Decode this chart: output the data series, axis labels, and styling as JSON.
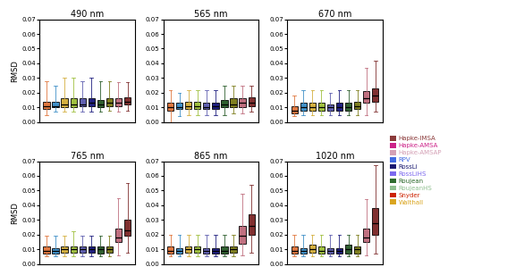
{
  "bands": [
    "490 nm",
    "565 nm",
    "670 nm",
    "765 nm",
    "865 nm",
    "1020 nm"
  ],
  "models": [
    "Hapke-IMSA",
    "Hapke-AMSA",
    "Hapke-AMSAP",
    "RPV",
    "RossLi",
    "RossLiHS",
    "Roujean",
    "RoujeanHS",
    "Snyder",
    "Walthall"
  ],
  "colors": [
    "#d2691e",
    "#4682b4",
    "#daa520",
    "#9acd32",
    "#6a5acd",
    "#191970",
    "#2e8b57",
    "#808000",
    "#c08080",
    "#8b2020"
  ],
  "legend_text_colors": [
    "#8b3a3a",
    "#cc3399",
    "#d4a0b0",
    "#4682b4",
    "#191970",
    "#7b68ee",
    "#2e6b2e",
    "#90c090",
    "#cc2200",
    "#daa520"
  ],
  "ylabel": "RMSD",
  "ylim": [
    0.0,
    0.07
  ],
  "yticks": [
    0.0,
    0.01,
    0.02,
    0.03,
    0.04,
    0.05,
    0.06,
    0.07
  ],
  "boxplot_data": {
    "490 nm": {
      "Hapke-IMSA": {
        "whislo": 0.005,
        "q1": 0.009,
        "med": 0.011,
        "q3": 0.014,
        "whishi": 0.028
      },
      "Hapke-AMSA": {
        "whislo": 0.007,
        "q1": 0.01,
        "med": 0.011,
        "q3": 0.014,
        "whishi": 0.025
      },
      "Hapke-AMSAP": {
        "whislo": 0.007,
        "q1": 0.01,
        "med": 0.012,
        "q3": 0.016,
        "whishi": 0.03
      },
      "RPV": {
        "whislo": 0.007,
        "q1": 0.01,
        "med": 0.012,
        "q3": 0.016,
        "whishi": 0.03
      },
      "RossLi": {
        "whislo": 0.007,
        "q1": 0.011,
        "med": 0.012,
        "q3": 0.016,
        "whishi": 0.028
      },
      "RossLiHS": {
        "whislo": 0.007,
        "q1": 0.011,
        "med": 0.013,
        "q3": 0.016,
        "whishi": 0.03
      },
      "Roujean": {
        "whislo": 0.007,
        "q1": 0.01,
        "med": 0.012,
        "q3": 0.015,
        "whishi": 0.028
      },
      "RoujeanHS": {
        "whislo": 0.008,
        "q1": 0.011,
        "med": 0.013,
        "q3": 0.016,
        "whishi": 0.028
      },
      "Snyder": {
        "whislo": 0.007,
        "q1": 0.011,
        "med": 0.013,
        "q3": 0.016,
        "whishi": 0.027
      },
      "Walthall": {
        "whislo": 0.008,
        "q1": 0.012,
        "med": 0.014,
        "q3": 0.017,
        "whishi": 0.027
      }
    },
    "565 nm": {
      "Hapke-IMSA": {
        "whislo": 0.0,
        "q1": 0.008,
        "med": 0.01,
        "q3": 0.013,
        "whishi": 0.022
      },
      "Hapke-AMSA": {
        "whislo": 0.004,
        "q1": 0.009,
        "med": 0.01,
        "q3": 0.013,
        "whishi": 0.02
      },
      "Hapke-AMSAP": {
        "whislo": 0.005,
        "q1": 0.009,
        "med": 0.011,
        "q3": 0.014,
        "whishi": 0.022
      },
      "RPV": {
        "whislo": 0.005,
        "q1": 0.009,
        "med": 0.011,
        "q3": 0.014,
        "whishi": 0.022
      },
      "RossLi": {
        "whislo": 0.005,
        "q1": 0.009,
        "med": 0.01,
        "q3": 0.013,
        "whishi": 0.022
      },
      "RossLiHS": {
        "whislo": 0.005,
        "q1": 0.009,
        "med": 0.011,
        "q3": 0.013,
        "whishi": 0.022
      },
      "Roujean": {
        "whislo": 0.005,
        "q1": 0.01,
        "med": 0.012,
        "q3": 0.015,
        "whishi": 0.025
      },
      "RoujeanHS": {
        "whislo": 0.006,
        "q1": 0.01,
        "med": 0.012,
        "q3": 0.016,
        "whishi": 0.025
      },
      "Snyder": {
        "whislo": 0.006,
        "q1": 0.01,
        "med": 0.013,
        "q3": 0.016,
        "whishi": 0.025
      },
      "Walthall": {
        "whislo": 0.007,
        "q1": 0.011,
        "med": 0.013,
        "q3": 0.017,
        "whishi": 0.025
      }
    },
    "670 nm": {
      "Hapke-IMSA": {
        "whislo": 0.004,
        "q1": 0.006,
        "med": 0.008,
        "q3": 0.011,
        "whishi": 0.018
      },
      "Hapke-AMSA": {
        "whislo": 0.005,
        "q1": 0.008,
        "med": 0.01,
        "q3": 0.013,
        "whishi": 0.022
      },
      "Hapke-AMSAP": {
        "whislo": 0.005,
        "q1": 0.008,
        "med": 0.01,
        "q3": 0.013,
        "whishi": 0.022
      },
      "RPV": {
        "whislo": 0.005,
        "q1": 0.008,
        "med": 0.01,
        "q3": 0.013,
        "whishi": 0.022
      },
      "RossLi": {
        "whislo": 0.005,
        "q1": 0.008,
        "med": 0.01,
        "q3": 0.012,
        "whishi": 0.02
      },
      "RossLiHS": {
        "whislo": 0.005,
        "q1": 0.008,
        "med": 0.01,
        "q3": 0.013,
        "whishi": 0.022
      },
      "Roujean": {
        "whislo": 0.005,
        "q1": 0.008,
        "med": 0.01,
        "q3": 0.013,
        "whishi": 0.022
      },
      "RoujeanHS": {
        "whislo": 0.005,
        "q1": 0.009,
        "med": 0.011,
        "q3": 0.014,
        "whishi": 0.022
      },
      "Snyder": {
        "whislo": 0.005,
        "q1": 0.013,
        "med": 0.016,
        "q3": 0.021,
        "whishi": 0.037
      },
      "Walthall": {
        "whislo": 0.007,
        "q1": 0.014,
        "med": 0.018,
        "q3": 0.023,
        "whishi": 0.042
      }
    },
    "765 nm": {
      "Hapke-IMSA": {
        "whislo": 0.005,
        "q1": 0.007,
        "med": 0.009,
        "q3": 0.012,
        "whishi": 0.019
      },
      "Hapke-AMSA": {
        "whislo": 0.005,
        "q1": 0.007,
        "med": 0.009,
        "q3": 0.011,
        "whishi": 0.019
      },
      "Hapke-AMSAP": {
        "whislo": 0.005,
        "q1": 0.008,
        "med": 0.01,
        "q3": 0.012,
        "whishi": 0.019
      },
      "RPV": {
        "whislo": 0.005,
        "q1": 0.008,
        "med": 0.01,
        "q3": 0.012,
        "whishi": 0.022
      },
      "RossLi": {
        "whislo": 0.005,
        "q1": 0.008,
        "med": 0.01,
        "q3": 0.012,
        "whishi": 0.019
      },
      "RossLiHS": {
        "whislo": 0.005,
        "q1": 0.008,
        "med": 0.01,
        "q3": 0.012,
        "whishi": 0.019
      },
      "Roujean": {
        "whislo": 0.005,
        "q1": 0.007,
        "med": 0.01,
        "q3": 0.012,
        "whishi": 0.019
      },
      "RoujeanHS": {
        "whislo": 0.005,
        "q1": 0.008,
        "med": 0.01,
        "q3": 0.012,
        "whishi": 0.019
      },
      "Snyder": {
        "whislo": 0.006,
        "q1": 0.015,
        "med": 0.018,
        "q3": 0.024,
        "whishi": 0.045
      },
      "Walthall": {
        "whislo": 0.008,
        "q1": 0.019,
        "med": 0.023,
        "q3": 0.03,
        "whishi": 0.055
      }
    },
    "865 nm": {
      "Hapke-IMSA": {
        "whislo": 0.005,
        "q1": 0.007,
        "med": 0.009,
        "q3": 0.012,
        "whishi": 0.02
      },
      "Hapke-AMSA": {
        "whislo": 0.005,
        "q1": 0.007,
        "med": 0.009,
        "q3": 0.011,
        "whishi": 0.02
      },
      "Hapke-AMSAP": {
        "whislo": 0.005,
        "q1": 0.008,
        "med": 0.01,
        "q3": 0.012,
        "whishi": 0.02
      },
      "RPV": {
        "whislo": 0.005,
        "q1": 0.008,
        "med": 0.01,
        "q3": 0.012,
        "whishi": 0.02
      },
      "RossLi": {
        "whislo": 0.005,
        "q1": 0.007,
        "med": 0.009,
        "q3": 0.011,
        "whishi": 0.02
      },
      "RossLiHS": {
        "whislo": 0.005,
        "q1": 0.007,
        "med": 0.009,
        "q3": 0.011,
        "whishi": 0.02
      },
      "Roujean": {
        "whislo": 0.005,
        "q1": 0.007,
        "med": 0.009,
        "q3": 0.012,
        "whishi": 0.02
      },
      "RoujeanHS": {
        "whislo": 0.005,
        "q1": 0.008,
        "med": 0.01,
        "q3": 0.012,
        "whishi": 0.02
      },
      "Snyder": {
        "whislo": 0.006,
        "q1": 0.014,
        "med": 0.019,
        "q3": 0.026,
        "whishi": 0.048
      },
      "Walthall": {
        "whislo": 0.008,
        "q1": 0.02,
        "med": 0.026,
        "q3": 0.034,
        "whishi": 0.054
      }
    },
    "1020 nm": {
      "Hapke-IMSA": {
        "whislo": 0.005,
        "q1": 0.007,
        "med": 0.009,
        "q3": 0.012,
        "whishi": 0.02
      },
      "Hapke-AMSA": {
        "whislo": 0.005,
        "q1": 0.007,
        "med": 0.009,
        "q3": 0.011,
        "whishi": 0.02
      },
      "Hapke-AMSAP": {
        "whislo": 0.005,
        "q1": 0.008,
        "med": 0.01,
        "q3": 0.013,
        "whishi": 0.02
      },
      "RPV": {
        "whislo": 0.005,
        "q1": 0.007,
        "med": 0.009,
        "q3": 0.012,
        "whishi": 0.02
      },
      "RossLi": {
        "whislo": 0.005,
        "q1": 0.007,
        "med": 0.009,
        "q3": 0.011,
        "whishi": 0.02
      },
      "RossLiHS": {
        "whislo": 0.005,
        "q1": 0.007,
        "med": 0.009,
        "q3": 0.011,
        "whishi": 0.02
      },
      "Roujean": {
        "whislo": 0.005,
        "q1": 0.007,
        "med": 0.01,
        "q3": 0.013,
        "whishi": 0.02
      },
      "RoujeanHS": {
        "whislo": 0.005,
        "q1": 0.007,
        "med": 0.01,
        "q3": 0.012,
        "whishi": 0.02
      },
      "Snyder": {
        "whislo": 0.006,
        "q1": 0.015,
        "med": 0.018,
        "q3": 0.024,
        "whishi": 0.044
      },
      "Walthall": {
        "whislo": 0.007,
        "q1": 0.02,
        "med": 0.028,
        "q3": 0.038,
        "whishi": 0.067
      }
    }
  },
  "legend_entries": [
    {
      "label": "Hapke-IMSA",
      "color": "#8b3a3a"
    },
    {
      "label": "Hapke-AMSA",
      "color": "#cc2288"
    },
    {
      "label": "Hapke-AMSAP",
      "color": "#d4a0b5"
    },
    {
      "label": "RPV",
      "color": "#4169e1"
    },
    {
      "label": "RossLi",
      "color": "#191970"
    },
    {
      "label": "RossLiHS",
      "color": "#7b68ee"
    },
    {
      "label": "Roujean",
      "color": "#2e6b2e"
    },
    {
      "label": "RoujeanHS",
      "color": "#90c090"
    },
    {
      "label": "Snyder",
      "color": "#cc2200"
    },
    {
      "label": "Walthall",
      "color": "#daa520"
    }
  ]
}
